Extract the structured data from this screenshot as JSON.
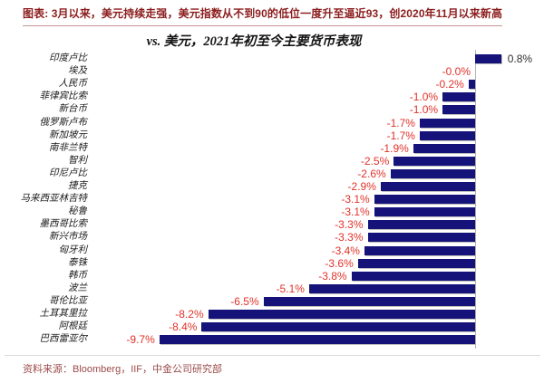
{
  "header": {
    "note": "图表: 3月以来，美元持续走强，美元指数从不到90的低位一度升至逼近93，创2020年11月以来新高"
  },
  "chart_data": {
    "type": "bar",
    "orientation": "horizontal",
    "title": "vs. 美元，2021年初至今主要货币表现",
    "categories": [
      "印度卢比",
      "埃及",
      "人民币",
      "菲律宾比索",
      "新台币",
      "俄罗斯卢布",
      "新加坡元",
      "南非兰特",
      "智利",
      "印尼卢比",
      "捷克",
      "马来西亚林吉特",
      "秘鲁",
      "墨西哥比索",
      "新兴市场",
      "匈牙利",
      "泰铢",
      "韩币",
      "波兰",
      "哥伦比亚",
      "土耳其里拉",
      "阿根廷",
      "巴西雷亚尔"
    ],
    "values": [
      0.8,
      -0.0,
      -0.2,
      -1.0,
      -1.0,
      -1.7,
      -1.7,
      -1.9,
      -2.5,
      -2.6,
      -2.9,
      -3.1,
      -3.1,
      -3.3,
      -3.3,
      -3.4,
      -3.6,
      -3.8,
      -5.1,
      -6.5,
      -8.2,
      -8.4,
      -9.7
    ],
    "value_labels": [
      "0.8%",
      "-0.0%",
      "-0.2%",
      "-1.0%",
      "-1.0%",
      "-1.7%",
      "-1.7%",
      "-1.9%",
      "-2.5%",
      "-2.6%",
      "-2.9%",
      "-3.1%",
      "-3.1%",
      "-3.3%",
      "-3.3%",
      "-3.4%",
      "-3.6%",
      "-3.8%",
      "-5.1%",
      "-6.5%",
      "-8.2%",
      "-8.4%",
      "-9.7%"
    ],
    "unit": "%",
    "xlim": [
      -11,
      2.1
    ],
    "grid": false,
    "legend": "none",
    "bar_color": "#15127a",
    "negative_label_color": "#e1322a",
    "positive_label_color": "#2e2e2e"
  },
  "footer": {
    "source": "资料来源：Bloomberg，IIF，中金公司研究部"
  }
}
